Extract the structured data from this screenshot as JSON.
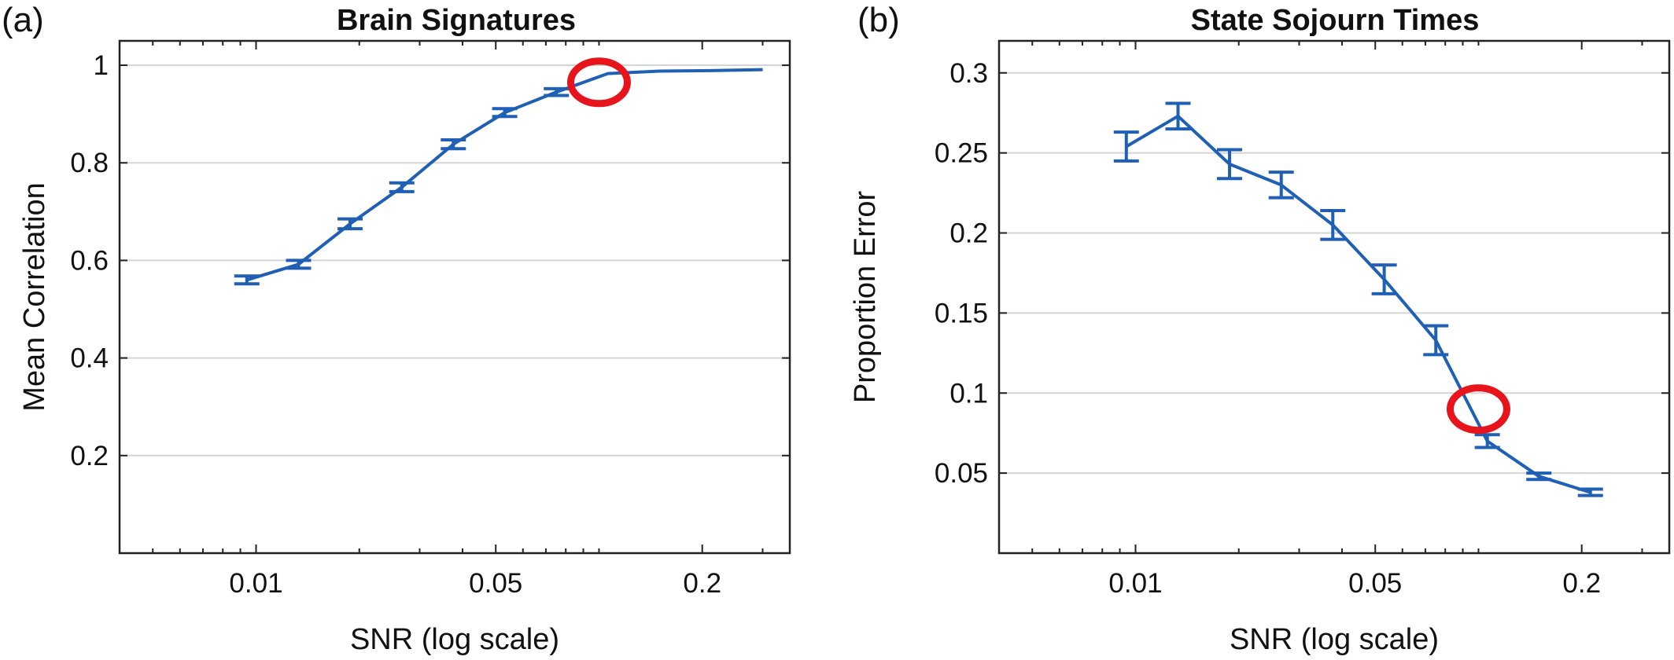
{
  "panels": [
    {
      "label": "(a)",
      "title": "Brain Signatures",
      "xlabel": "SNR (log scale)",
      "ylabel": "Mean Correlation"
    },
    {
      "label": "(b)",
      "title": "State Sojourn Times",
      "xlabel": "SNR (log scale)",
      "ylabel": "Proportion Error"
    }
  ],
  "chart_data": [
    {
      "type": "line",
      "title": "Brain Signatures",
      "xlabel": "SNR (log scale)",
      "ylabel": "Mean Correlation",
      "xscale": "log",
      "xlim": [
        0.004,
        0.36
      ],
      "ylim": [
        0,
        1.05
      ],
      "xticks": [
        0.01,
        0.05,
        0.2
      ],
      "xtick_labels": [
        "0.01",
        "0.05",
        "0.2"
      ],
      "yticks": [
        0.2,
        0.4,
        0.6,
        0.8,
        1
      ],
      "ytick_labels": [
        "0.2",
        "0.4",
        "0.6",
        "0.8",
        "1"
      ],
      "grid": true,
      "color": "#1f5fb4",
      "series": [
        {
          "x": [
            0.0094,
            0.0133,
            0.0188,
            0.0266,
            0.0376,
            0.0531,
            0.0751,
            0.1061,
            0.15,
            0.212,
            0.3
          ],
          "y": [
            0.56,
            0.592,
            0.675,
            0.75,
            0.838,
            0.903,
            0.945,
            0.983,
            0.988,
            0.989,
            0.991
          ],
          "err": [
            0.008,
            0.008,
            0.01,
            0.009,
            0.009,
            0.008,
            0.007,
            0,
            0,
            0,
            0
          ]
        }
      ],
      "highlight": {
        "x": 0.1,
        "y": 0.965,
        "color": "#e8141b"
      }
    },
    {
      "type": "line",
      "title": "State Sojourn Times",
      "xlabel": "SNR (log scale)",
      "ylabel": "Proportion Error",
      "xscale": "log",
      "xlim": [
        0.004,
        0.36
      ],
      "ylim": [
        0,
        0.32
      ],
      "xticks": [
        0.01,
        0.05,
        0.2
      ],
      "xtick_labels": [
        "0.01",
        "0.05",
        "0.2"
      ],
      "yticks": [
        0.05,
        0.1,
        0.15,
        0.2,
        0.25,
        0.3
      ],
      "ytick_labels": [
        "0.05",
        "0.1",
        "0.15",
        "0.2",
        "0.25",
        "0.3"
      ],
      "grid": true,
      "color": "#1f5fb4",
      "series": [
        {
          "x": [
            0.0094,
            0.0133,
            0.0188,
            0.0266,
            0.0376,
            0.0531,
            0.0751,
            0.1061,
            0.15,
            0.212
          ],
          "y": [
            0.254,
            0.273,
            0.243,
            0.23,
            0.205,
            0.171,
            0.133,
            0.07,
            0.048,
            0.038
          ],
          "err": [
            0.009,
            0.008,
            0.009,
            0.008,
            0.009,
            0.009,
            0.009,
            0.004,
            0.002,
            0.002
          ]
        }
      ],
      "highlight": {
        "x": 0.1,
        "y": 0.09,
        "color": "#e8141b"
      }
    }
  ]
}
